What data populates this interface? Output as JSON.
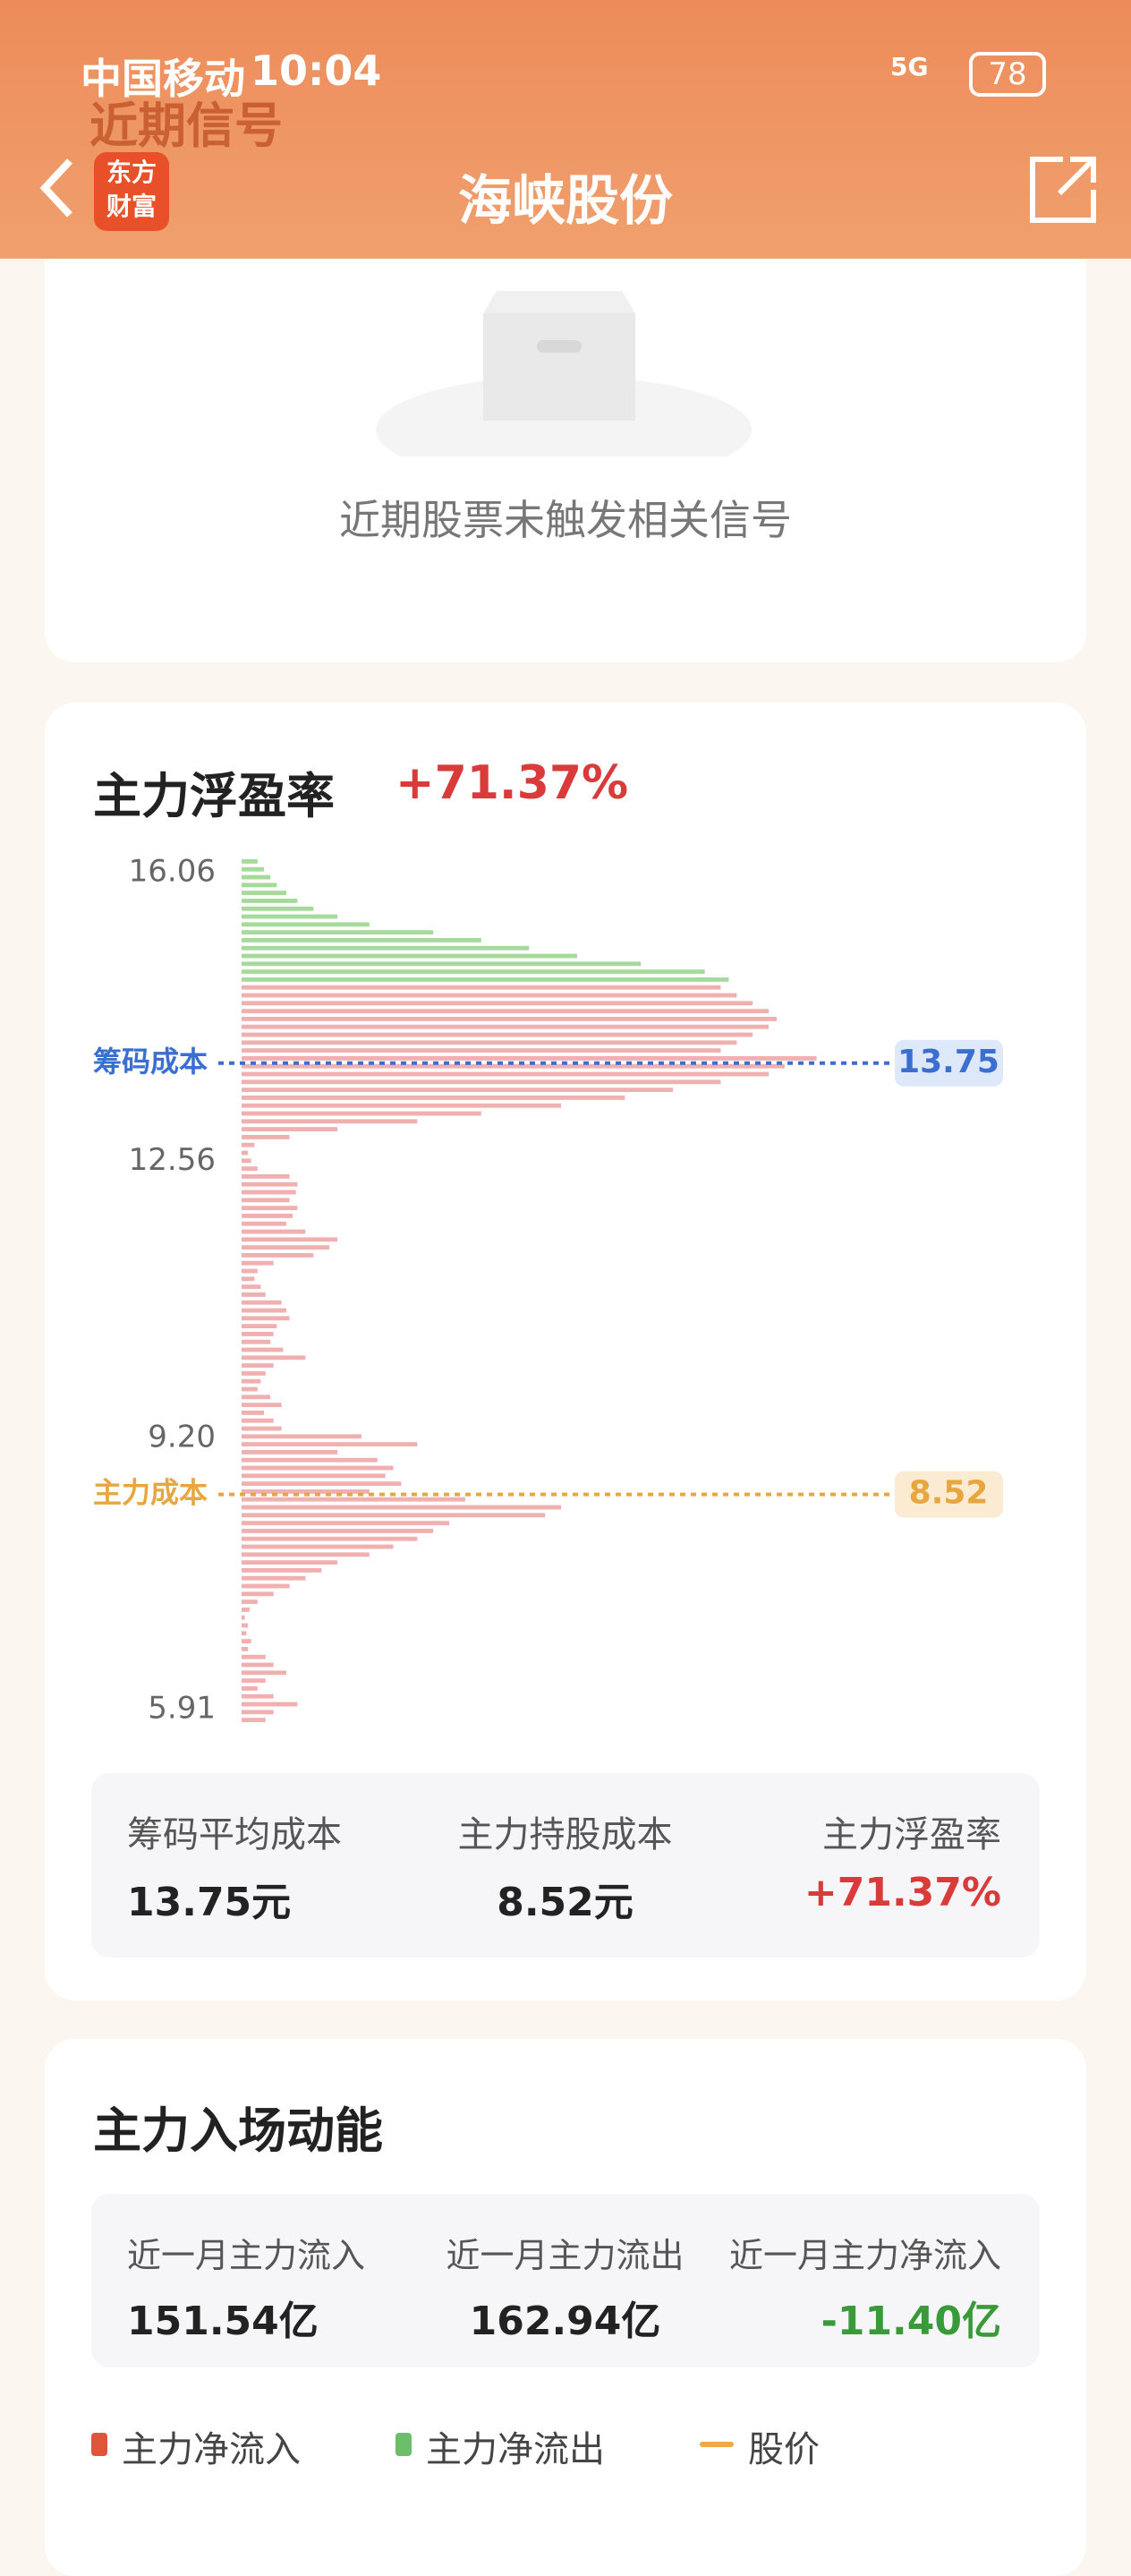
{
  "status_bar": {
    "carrier": "中国移动",
    "time": "10:04",
    "network": "5G",
    "battery": "78"
  },
  "header": {
    "section_hint": "近期信号",
    "logo_line1": "东方",
    "logo_line2": "财富",
    "title": "海峡股份"
  },
  "signal_card": {
    "empty_text": "近期股票未触发相关信号"
  },
  "profit_card": {
    "title": "主力浮盈率",
    "title_value": "+71.37%",
    "chip_chart": {
      "type": "horizontal-bar-distribution",
      "ylim": [
        5.91,
        16.06
      ],
      "yticks": [
        16.06,
        12.56,
        {
          "value": 9.2,
          "label": "9.20"
        },
        5.91
      ],
      "series": [
        {
          "color": "#a6d99c",
          "values": [
            10,
            14,
            18,
            22,
            28,
            35,
            45,
            60,
            80,
            120,
            150,
            180,
            210,
            250,
            290,
            305
          ]
        },
        {
          "color": "#f0b0b0",
          "values": [
            300,
            310,
            320,
            330,
            335,
            330,
            320,
            310,
            300,
            360,
            340,
            330,
            300,
            270,
            240,
            200,
            150,
            110,
            60,
            30,
            8,
            4,
            6,
            10,
            30,
            35,
            34,
            30,
            35,
            32,
            28,
            40,
            60,
            55,
            45,
            20,
            10,
            8,
            12,
            15,
            25,
            28,
            30,
            22,
            20,
            18,
            26,
            40,
            20,
            15,
            12,
            10,
            18,
            25,
            14,
            20,
            25,
            75,
            110,
            60,
            85,
            95,
            90,
            100,
            80,
            140,
            200,
            190,
            130,
            120,
            110,
            95,
            80,
            60,
            50,
            40,
            30,
            20,
            10,
            5,
            2,
            4,
            3,
            6,
            4,
            15,
            20,
            28,
            15,
            10,
            20,
            35,
            20,
            15
          ]
        }
      ],
      "cost_lines": [
        {
          "label": "筹码成本",
          "value": 13.75,
          "color": "#3a6fd0",
          "badge_color": "#dde8f8"
        },
        {
          "label": "主力成本",
          "value": 8.52,
          "color": "#e8a640",
          "badge_color": "#fcebd3"
        }
      ]
    },
    "summary": [
      {
        "label": "筹码平均成本",
        "value": "13.75元"
      },
      {
        "label": "主力持股成本",
        "value": "8.52元"
      },
      {
        "label": "主力浮盈率",
        "value": "+71.37%"
      }
    ]
  },
  "flow_card": {
    "title": "主力入场动能",
    "summary": [
      {
        "label": "近一月主力流入",
        "value": "151.54亿"
      },
      {
        "label": "近一月主力流出",
        "value": "162.94亿"
      },
      {
        "label": "近一月主力净流入",
        "value": "-11.40亿"
      }
    ],
    "legend": [
      "主力净流入",
      "主力净流出",
      "股价"
    ]
  }
}
